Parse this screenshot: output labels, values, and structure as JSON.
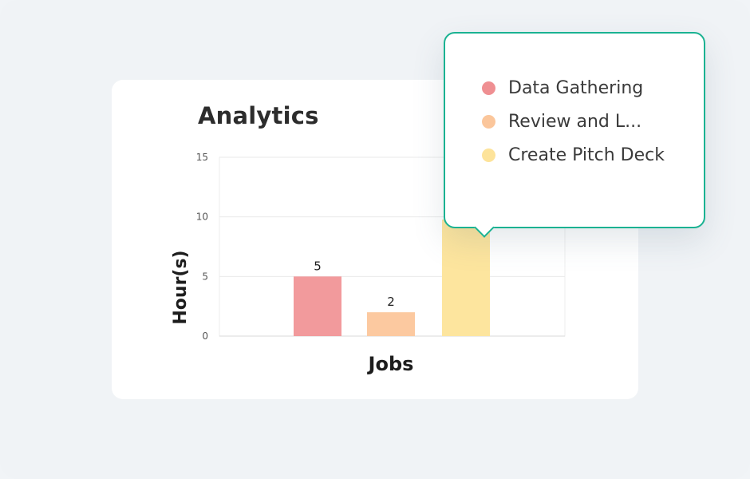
{
  "card": {
    "title": "Analytics"
  },
  "chart_data": {
    "type": "bar",
    "categories": [
      "Data Gathering",
      "Review and L...",
      "Create Pitch Deck"
    ],
    "values": [
      5,
      2,
      null
    ],
    "data_labels": [
      "5",
      "2",
      ""
    ],
    "colors": [
      "#f29a9c",
      "#fcc9a0",
      "#fde59e"
    ],
    "xlabel": "Jobs",
    "ylabel": "Hour(s)",
    "ylim": [
      0,
      15
    ],
    "yticks": [
      0,
      5,
      10,
      15
    ],
    "grid": true,
    "note": "third bar partially hidden behind tooltip"
  },
  "tooltip": {
    "items": [
      {
        "label": "Data Gathering",
        "color": "#ef8f92"
      },
      {
        "label": "Review and L...",
        "color": "#fbc69b"
      },
      {
        "label": "Create Pitch Deck",
        "color": "#fde39a"
      }
    ]
  }
}
